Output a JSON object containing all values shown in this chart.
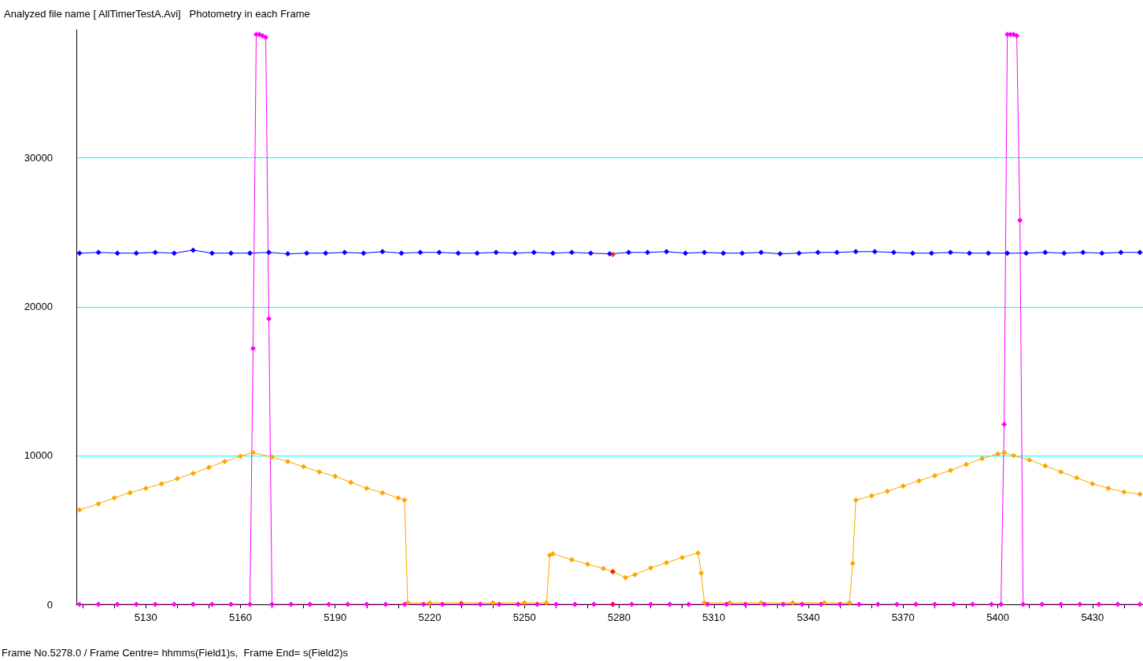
{
  "chart_data": {
    "type": "line",
    "title": "Analyzed file name [ AllTimerTestA.Avi]   Photometry in each Frame",
    "annotations": [
      "Frame No.5278.0 / Frame Centre= hhmms(Field1)s,  Frame End= s(Field2)s"
    ],
    "xlim": [
      5108,
      5446
    ],
    "ylim": [
      0,
      38600
    ],
    "xticks": [
      {
        "value": 5110,
        "label": null
      },
      {
        "value": 5120,
        "label": null
      },
      5130,
      {
        "value": 5140,
        "label": null
      },
      {
        "value": 5150,
        "label": null
      },
      5160,
      {
        "value": 5170,
        "label": null
      },
      {
        "value": 5180,
        "label": null
      },
      5190,
      {
        "value": 5200,
        "label": null
      },
      {
        "value": 5210,
        "label": null
      },
      5220,
      {
        "value": 5230,
        "label": null
      },
      {
        "value": 5240,
        "label": null
      },
      5250,
      {
        "value": 5260,
        "label": null
      },
      {
        "value": 5270,
        "label": null
      },
      5280,
      {
        "value": 5290,
        "label": null
      },
      {
        "value": 5300,
        "label": null
      },
      5310,
      {
        "value": 5320,
        "label": null
      },
      {
        "value": 5330,
        "label": null
      },
      5340,
      {
        "value": 5350,
        "label": null
      },
      {
        "value": 5360,
        "label": null
      },
      5370,
      {
        "value": 5380,
        "label": null
      },
      {
        "value": 5390,
        "label": null
      },
      5400,
      {
        "value": 5410,
        "label": null
      },
      {
        "value": 5420,
        "label": null
      },
      5430,
      {
        "value": 5440,
        "label": null
      }
    ],
    "yticks": [
      0,
      10000,
      20000,
      30000
    ],
    "grid": "y",
    "marker": "diamond",
    "line_style": "solid",
    "series": [
      {
        "color": "#0000ff",
        "x": [
          5109,
          5115,
          5121,
          5127,
          5133,
          5139,
          5145,
          5151,
          5157,
          5163,
          5169,
          5175,
          5181,
          5187,
          5193,
          5199,
          5205,
          5211,
          5217,
          5223,
          5229,
          5235,
          5241,
          5247,
          5253,
          5259,
          5265,
          5271,
          5277,
          5283,
          5289,
          5295,
          5301,
          5307,
          5313,
          5319,
          5325,
          5331,
          5337,
          5343,
          5349,
          5355,
          5361,
          5367,
          5373,
          5379,
          5385,
          5391,
          5397,
          5403,
          5409,
          5415,
          5421,
          5427,
          5433,
          5439,
          5445
        ],
        "values": [
          23600,
          23650,
          23600,
          23600,
          23650,
          23600,
          23800,
          23600,
          23600,
          23600,
          23650,
          23550,
          23600,
          23600,
          23650,
          23600,
          23700,
          23600,
          23650,
          23650,
          23600,
          23600,
          23650,
          23600,
          23650,
          23600,
          23650,
          23600,
          23550,
          23650,
          23650,
          23700,
          23600,
          23650,
          23600,
          23600,
          23650,
          23550,
          23600,
          23650,
          23650,
          23700,
          23700,
          23650,
          23600,
          23600,
          23650,
          23600,
          23600,
          23600,
          23600,
          23650,
          23600,
          23650,
          23600,
          23650,
          23650
        ]
      },
      {
        "color": "#ffa500",
        "x": [
          5109,
          5115,
          5120,
          5125,
          5130,
          5135,
          5140,
          5145,
          5150,
          5155,
          5160,
          5164,
          5170,
          5175,
          5180,
          5185,
          5190,
          5195,
          5200,
          5205,
          5210,
          5212,
          5213,
          5220,
          5230,
          5240,
          5250,
          5257,
          5258,
          5259,
          5265,
          5270,
          5275,
          5278,
          5282,
          5285,
          5290,
          5295,
          5300,
          5305,
          5306,
          5307,
          5315,
          5325,
          5335,
          5345,
          5353,
          5354,
          5355,
          5360,
          5365,
          5370,
          5375,
          5380,
          5385,
          5390,
          5395,
          5400,
          5402,
          5405,
          5410,
          5415,
          5420,
          5425,
          5430,
          5435,
          5440,
          5445
        ],
        "values": [
          6350,
          6750,
          7150,
          7500,
          7800,
          8100,
          8450,
          8800,
          9200,
          9600,
          9950,
          10200,
          9900,
          9600,
          9250,
          8900,
          8600,
          8200,
          7800,
          7500,
          7150,
          7000,
          100,
          100,
          100,
          100,
          100,
          100,
          3300,
          3400,
          3000,
          2700,
          2400,
          2200,
          1800,
          2000,
          2450,
          2800,
          3150,
          3450,
          2100,
          100,
          100,
          100,
          100,
          100,
          100,
          2750,
          7000,
          7300,
          7600,
          7950,
          8300,
          8650,
          9000,
          9400,
          9800,
          10100,
          10200,
          10000,
          9700,
          9300,
          8900,
          8500,
          8100,
          7800,
          7550,
          7400
        ]
      },
      {
        "color": "#ff00ff",
        "x": [
          5109,
          5115,
          5121,
          5127,
          5133,
          5139,
          5145,
          5151,
          5157,
          5163,
          5164,
          5165,
          5166,
          5167,
          5168,
          5169,
          5170,
          5176,
          5182,
          5188,
          5194,
          5200,
          5206,
          5212,
          5218,
          5224,
          5230,
          5236,
          5242,
          5248,
          5254,
          5260,
          5266,
          5272,
          5278,
          5284,
          5290,
          5296,
          5302,
          5308,
          5314,
          5320,
          5326,
          5332,
          5338,
          5344,
          5350,
          5356,
          5362,
          5368,
          5374,
          5380,
          5386,
          5392,
          5398,
          5401,
          5402,
          5403,
          5404,
          5405,
          5406,
          5407,
          5408,
          5414,
          5420,
          5426,
          5432,
          5438,
          5445
        ],
        "values": [
          0,
          0,
          0,
          0,
          0,
          0,
          0,
          0,
          0,
          0,
          17200,
          38300,
          38300,
          38200,
          38100,
          19200,
          0,
          0,
          0,
          0,
          0,
          0,
          0,
          0,
          0,
          0,
          0,
          0,
          0,
          0,
          0,
          0,
          0,
          0,
          0,
          0,
          0,
          0,
          0,
          0,
          0,
          0,
          0,
          0,
          0,
          0,
          0,
          0,
          0,
          0,
          0,
          0,
          0,
          0,
          0,
          0,
          12100,
          38300,
          38300,
          38300,
          38200,
          25800,
          0,
          0,
          0,
          0,
          0,
          0,
          0
        ]
      },
      {
        "type": "scatter",
        "color": "#ff0000",
        "x": [
          5278,
          5278,
          5278
        ],
        "values": [
          23500,
          2200,
          0
        ]
      }
    ]
  }
}
